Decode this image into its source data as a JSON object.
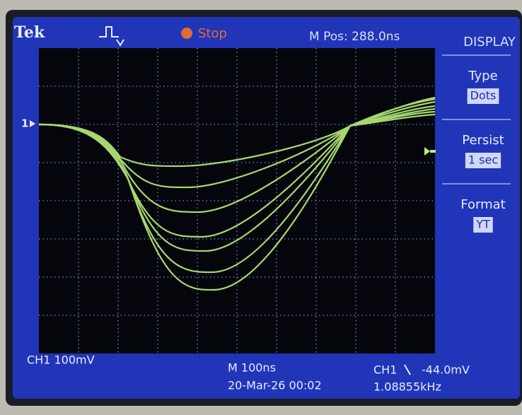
{
  "header": {
    "brand": "Tek",
    "status": "Stop",
    "position": "M Pos: 288.0ns"
  },
  "marker": "1",
  "menu": {
    "title": "DISPLAY",
    "items": [
      {
        "label": "Type",
        "value": "Dots"
      },
      {
        "label": "Persist",
        "value": "1 sec"
      },
      {
        "label": "Format",
        "value": "YT"
      }
    ]
  },
  "footer": {
    "channel": "CH1 100mV",
    "timebase": "M 100ns",
    "datetime": "20-Mar-26 00:02",
    "trigger_channel": "CH1",
    "trigger_level": "-44.0mV",
    "frequency": "1.08855kHz"
  }
}
